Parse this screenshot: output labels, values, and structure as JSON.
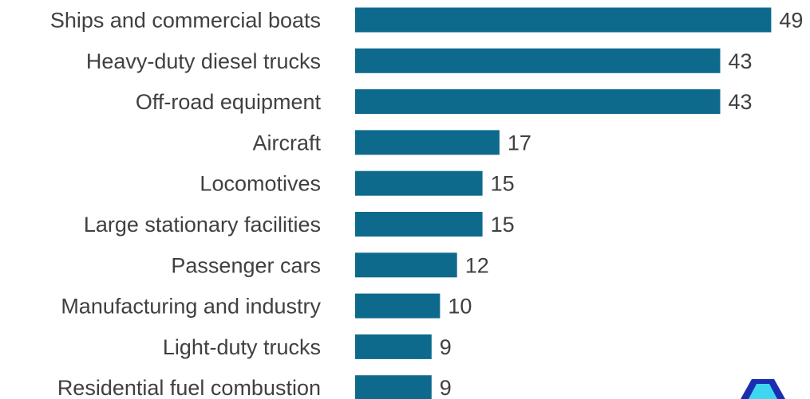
{
  "chart_data": {
    "type": "bar",
    "orientation": "horizontal",
    "categories": [
      "Ships and commercial boats",
      "Heavy-duty diesel trucks",
      "Off-road equipment",
      "Aircraft",
      "Locomotives",
      "Large stationary facilities",
      "Passenger cars",
      "Manufacturing and industry",
      "Light-duty trucks",
      "Residential fuel combustion"
    ],
    "values": [
      49,
      43,
      43,
      17,
      15,
      15,
      12,
      10,
      9,
      9
    ],
    "value_labels": [
      "49",
      "43",
      "43",
      "17",
      "15",
      "15",
      "12",
      "10",
      "9",
      "9"
    ],
    "xlim": [
      0,
      49
    ],
    "grid": false,
    "legend": "none",
    "bar_color": "#0e6a8c"
  },
  "colors": {
    "bar": "#0e6a8c",
    "text": "#404040",
    "logo_dark": "#1a2fb0",
    "logo_light": "#3fd6f2"
  },
  "logo": {
    "icon": "logo-icon"
  }
}
